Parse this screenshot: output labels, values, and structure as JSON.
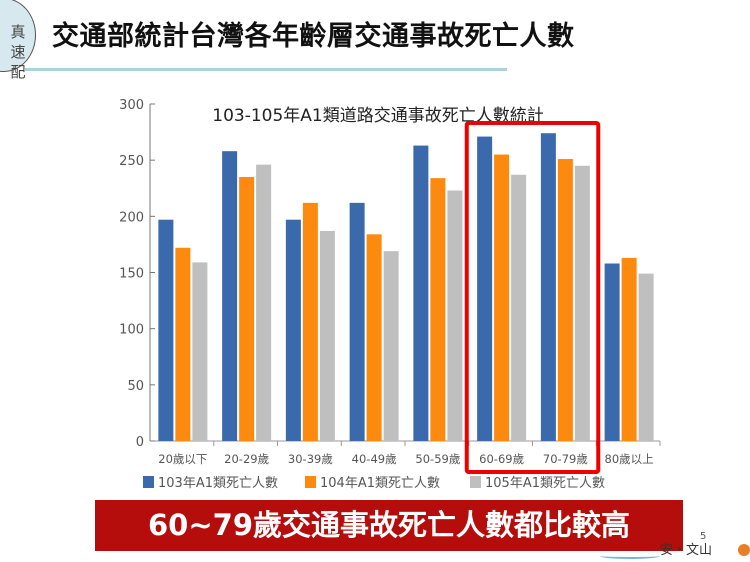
{
  "logo": {
    "text": "真速配"
  },
  "header": {
    "title": "交通部統計台灣各年齡層交通事故死亡人數"
  },
  "chart_data": {
    "type": "bar",
    "title": "103-105年A1類道路交通事故死亡人數統計",
    "categories": [
      "20歲以下",
      "20-29歲",
      "30-39歲",
      "40-49歲",
      "50-59歲",
      "60-69歲",
      "70-79歲",
      "80歲以上"
    ],
    "series": [
      {
        "name": "103年A1類死亡人數",
        "color": "#3a6aac",
        "values": [
          197,
          258,
          197,
          212,
          263,
          271,
          274,
          158
        ]
      },
      {
        "name": "104年A1類死亡人數",
        "color": "#fb8a0e",
        "values": [
          172,
          235,
          212,
          184,
          234,
          255,
          251,
          163
        ]
      },
      {
        "name": "105年A1類死亡人數",
        "color": "#bfbfbf",
        "values": [
          159,
          246,
          187,
          169,
          223,
          237,
          245,
          149
        ]
      }
    ],
    "ylim": [
      0,
      300
    ],
    "yticks": [
      0,
      50,
      100,
      150,
      200,
      250,
      300
    ],
    "grid": false,
    "legend": "bottom",
    "highlight": {
      "categories": [
        "60-69歲",
        "70-79歲"
      ],
      "color": "#ee0000"
    }
  },
  "banner": {
    "text": "60~79歲交通事故死亡人數都比較高"
  },
  "footer": {
    "page": "5",
    "text": "安・文山"
  }
}
